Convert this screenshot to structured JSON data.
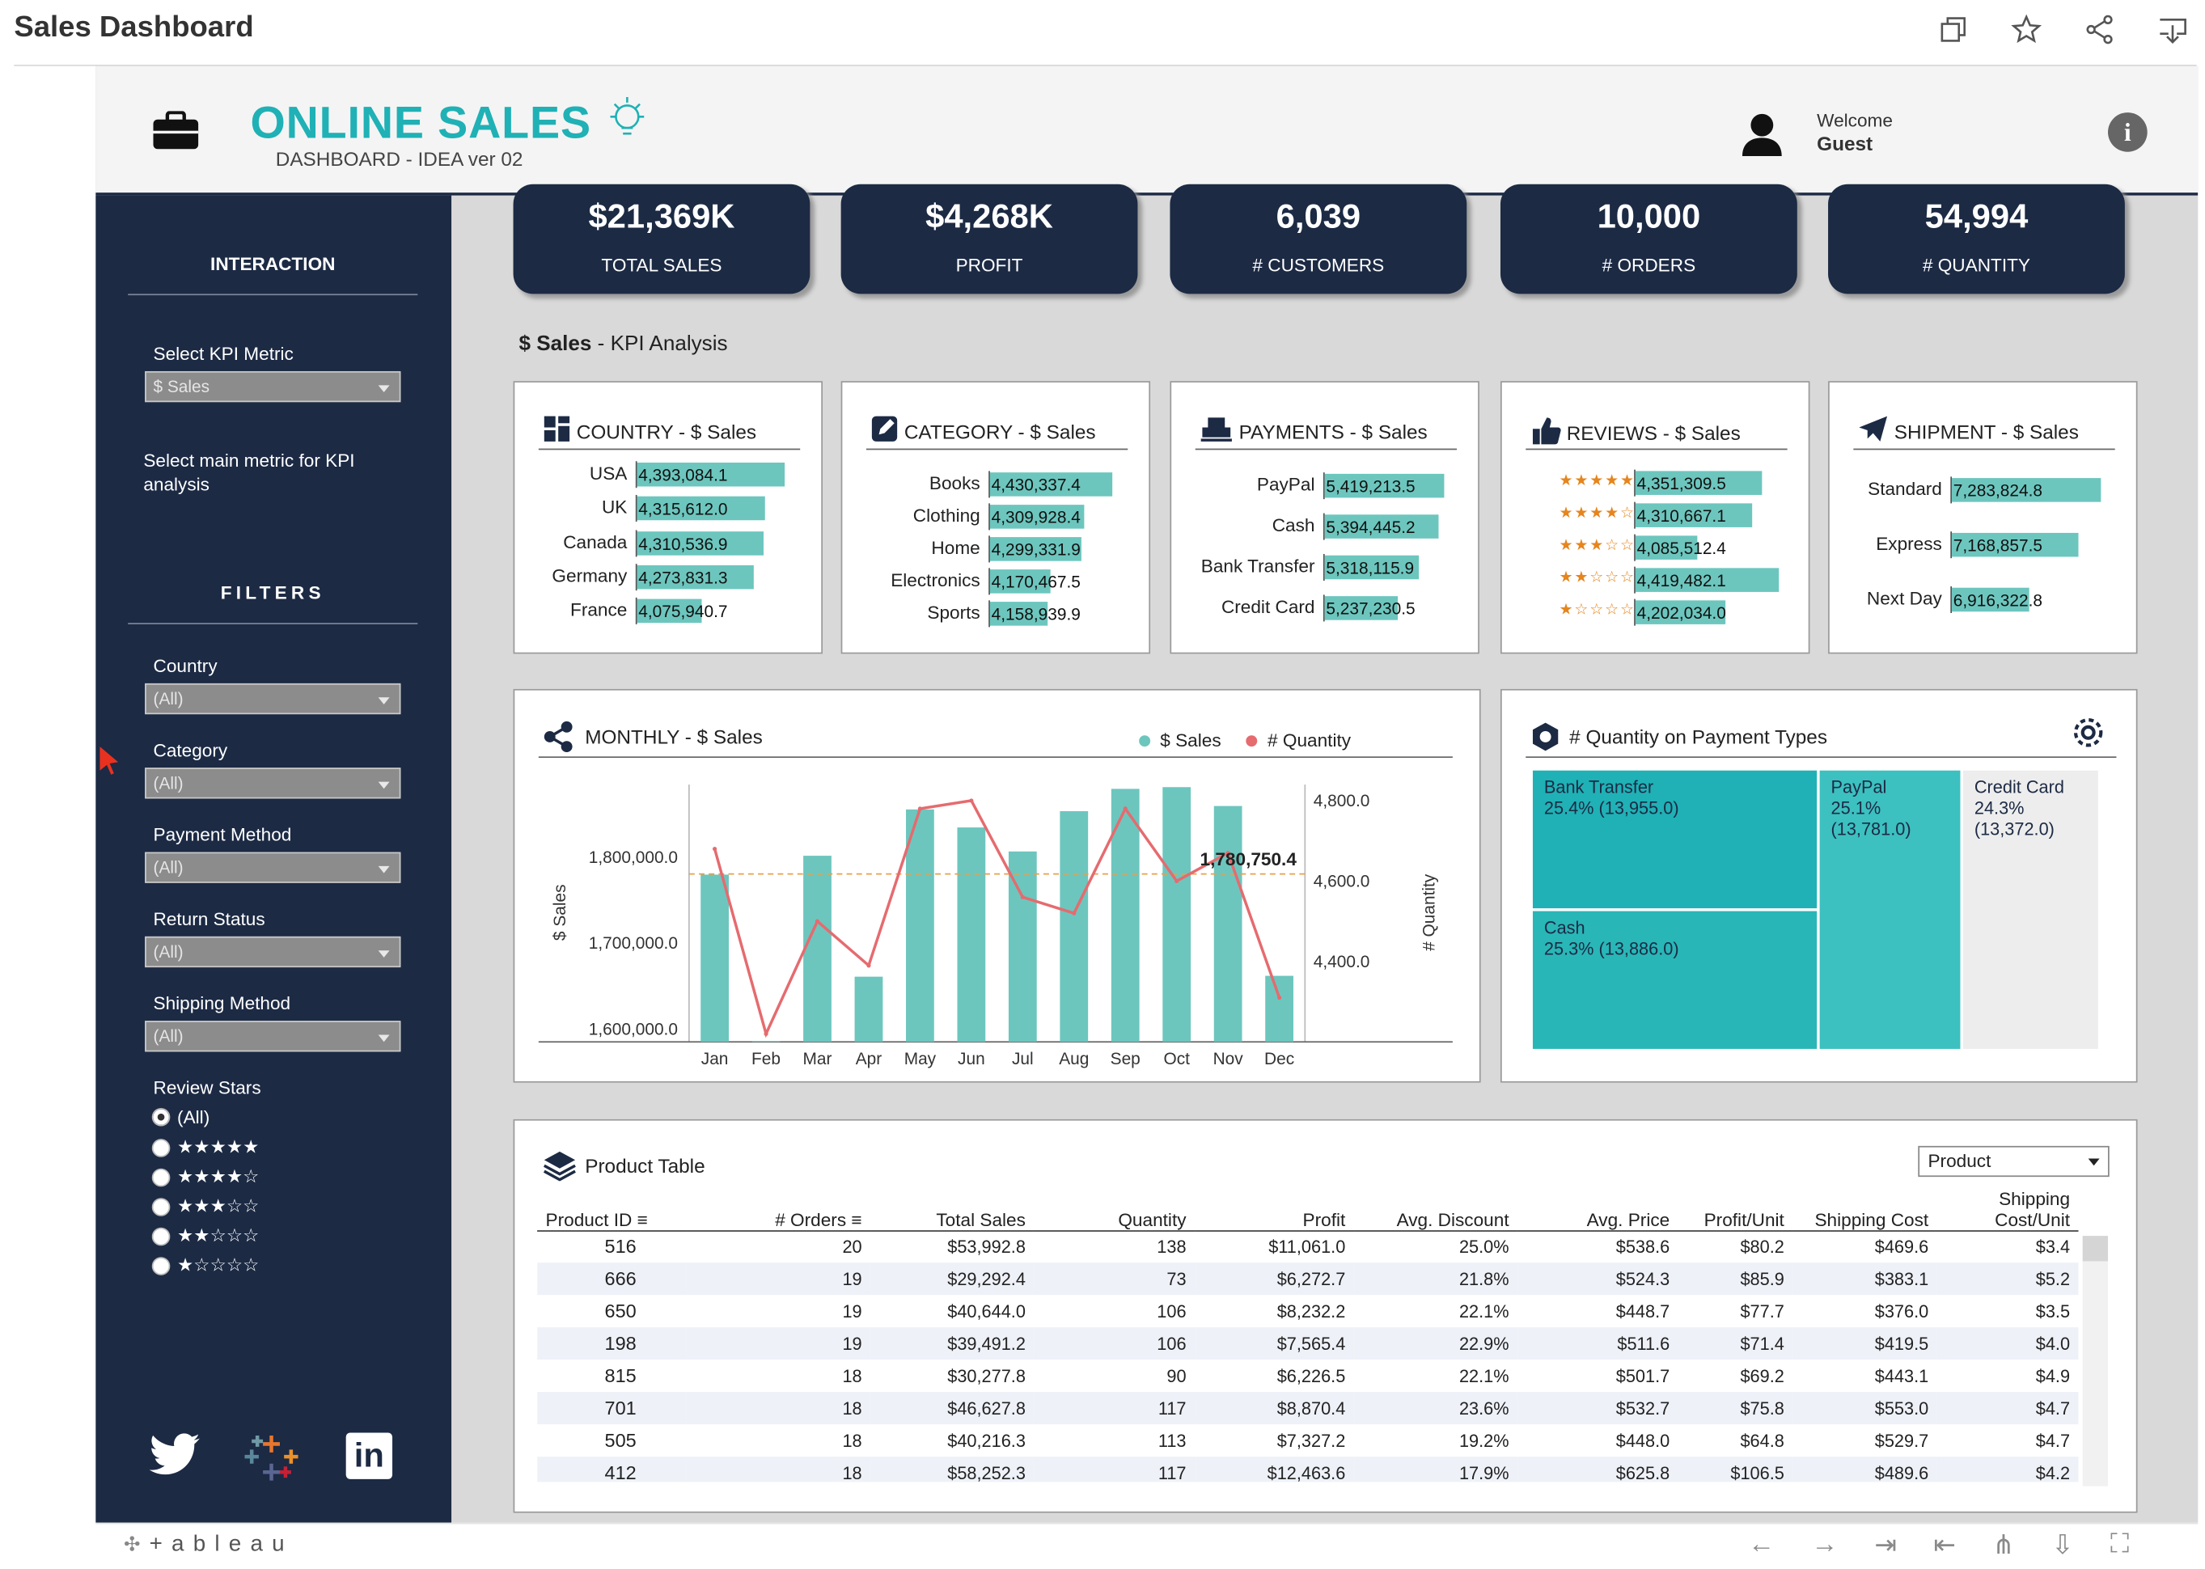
{
  "toolbar": {
    "title": "Sales Dashboard",
    "icons": [
      "duplicate-icon",
      "star-icon",
      "share-icon",
      "download-icon"
    ]
  },
  "header": {
    "brand": "ONLINE SALES",
    "subtitle": "DASHBOARD - IDEA ver 02",
    "welcome": "Welcome",
    "user": "Guest"
  },
  "kpis": [
    {
      "value": "$21,369K",
      "label": "TOTAL SALES"
    },
    {
      "value": "$4,268K",
      "label": "PROFIT"
    },
    {
      "value": "6,039",
      "label": "# CUSTOMERS"
    },
    {
      "value": "10,000",
      "label": "# ORDERS"
    },
    {
      "value": "54,994",
      "label": "# QUANTITY"
    }
  ],
  "sidebar": {
    "interaction": "INTERACTION",
    "kpi_label": "Select KPI Metric",
    "kpi_value": "$ Sales",
    "kpi_note": "Select main metric for KPI analysis",
    "filters": "FILTERS",
    "country_label": "Country",
    "country_value": "(All)",
    "category_label": "Category",
    "category_value": "(All)",
    "payment_label": "Payment Method",
    "payment_value": "(All)",
    "return_label": "Return Status",
    "return_value": "(All)",
    "shipping_label": "Shipping Method",
    "shipping_value": "(All)",
    "review_label": "Review Stars",
    "review_options": [
      "(All)",
      "★★★★★",
      "★★★★☆",
      "★★★☆☆",
      "★★☆☆☆",
      "★☆☆☆☆"
    ]
  },
  "section_title": {
    "metric": "$ Sales",
    "rest": " -  KPI Analysis"
  },
  "country": {
    "title": "COUNTRY - $ Sales",
    "rows": [
      [
        "USA",
        "4,393,084.1",
        4393084.1
      ],
      [
        "UK",
        "4,315,612.0",
        4315612.0
      ],
      [
        "Canada",
        "4,310,536.9",
        4310536.9
      ],
      [
        "Germany",
        "4,273,831.3",
        4273831.3
      ],
      [
        "France",
        "4,075,940.7",
        4075940.7
      ]
    ]
  },
  "category": {
    "title": "CATEGORY - $ Sales",
    "rows": [
      [
        "Books",
        "4,430,337.4",
        4430337.4
      ],
      [
        "Clothing",
        "4,309,928.4",
        4309928.4
      ],
      [
        "Home",
        "4,299,331.9",
        4299331.9
      ],
      [
        "Electronics",
        "4,170,467.5",
        4170467.5
      ],
      [
        "Sports",
        "4,158,939.9",
        4158939.9
      ]
    ]
  },
  "payments": {
    "title": "PAYMENTS - $ Sales",
    "rows": [
      [
        "PayPal",
        "5,419,213.5",
        5419213.5
      ],
      [
        "Cash",
        "5,394,445.2",
        5394445.2
      ],
      [
        "Bank Transfer",
        "5,318,115.9",
        5318115.9
      ],
      [
        "Credit Card",
        "5,237,230.5",
        5237230.5
      ]
    ]
  },
  "reviews": {
    "title": "REVIEWS - $ Sales",
    "rows": [
      [
        "★★★★★",
        "4,351,309.5",
        4351309.5
      ],
      [
        "★★★★☆",
        "4,310,667.1",
        4310667.1
      ],
      [
        "★★★☆☆",
        "4,085,512.4",
        4085512.4
      ],
      [
        "★★☆☆☆",
        "4,419,482.1",
        4419482.1
      ],
      [
        "★☆☆☆☆",
        "4,202,034.0",
        4202034.0
      ]
    ]
  },
  "shipment": {
    "title": "SHIPMENT - $ Sales",
    "rows": [
      [
        "Standard",
        "7,283,824.8",
        7283824.8
      ],
      [
        "Express",
        "7,168,857.5",
        7168857.5
      ],
      [
        "Next Day",
        "6,916,322.8",
        6916322.8
      ]
    ]
  },
  "monthly": {
    "title": "MONTHLY - $ Sales",
    "legend": [
      "$ Sales",
      "# Quantity"
    ],
    "ylabel": "$ Sales",
    "y2label": "# Quantity",
    "yticks": [
      "1,800,000.0",
      "1,700,000.0",
      "1,600,000.0"
    ],
    "y2ticks": [
      "4,800.0",
      "4,600.0",
      "4,400.0"
    ],
    "ref_label": "1,780,750.4"
  },
  "treemap": {
    "title": "# Quantity on Payment Types",
    "cells": [
      {
        "name": "Bank Transfer",
        "detail": "25.4% (13,955.0)",
        "value": 13955
      },
      {
        "name": "PayPal",
        "detail": "25.1%\n(13,781.0)",
        "value": 13781
      },
      {
        "name": "Credit Card",
        "detail": "24.3%\n(13,372.0)",
        "value": 13372
      },
      {
        "name": "Cash",
        "detail": "25.3% (13,886.0)",
        "value": 13886
      }
    ]
  },
  "product_table": {
    "title": "Product Table",
    "selector": "Product",
    "columns": [
      "Product ID",
      "# Orders",
      "Total Sales",
      "Quantity",
      "Profit",
      "Avg. Discount",
      "Avg. Price",
      "Profit/Unit",
      "Shipping Cost",
      "Shipping Cost/Unit"
    ],
    "rows": [
      [
        "516",
        "20",
        "$53,992.8",
        "138",
        "$11,061.0",
        "25.0%",
        "$538.6",
        "$80.2",
        "$469.6",
        "$3.4"
      ],
      [
        "666",
        "19",
        "$29,292.4",
        "73",
        "$6,272.7",
        "21.8%",
        "$524.3",
        "$85.9",
        "$383.1",
        "$5.2"
      ],
      [
        "650",
        "19",
        "$40,644.0",
        "106",
        "$8,232.2",
        "22.1%",
        "$448.7",
        "$77.7",
        "$376.0",
        "$3.5"
      ],
      [
        "198",
        "19",
        "$39,491.2",
        "106",
        "$7,565.4",
        "22.9%",
        "$511.6",
        "$71.4",
        "$419.5",
        "$4.0"
      ],
      [
        "815",
        "18",
        "$30,277.8",
        "90",
        "$6,226.5",
        "22.1%",
        "$501.7",
        "$69.2",
        "$443.1",
        "$4.9"
      ],
      [
        "701",
        "18",
        "$46,627.8",
        "117",
        "$8,870.4",
        "23.6%",
        "$532.7",
        "$75.8",
        "$553.0",
        "$4.7"
      ],
      [
        "505",
        "18",
        "$40,216.3",
        "113",
        "$7,327.2",
        "19.2%",
        "$448.0",
        "$64.8",
        "$529.7",
        "$4.7"
      ],
      [
        "412",
        "18",
        "$58,252.3",
        "117",
        "$12,463.6",
        "17.9%",
        "$625.8",
        "$106.5",
        "$489.6",
        "$4.2"
      ]
    ]
  },
  "footer": {
    "brand": "+ a b l e a u"
  },
  "colors": {
    "navy": "#1c2a44",
    "teal": "#1fb1b5",
    "bar": "#6cc6be",
    "line": "#e56b6f"
  },
  "chart_data": {
    "type": "bar",
    "title": "MONTHLY - $ Sales",
    "categories": [
      "Jan",
      "Feb",
      "Mar",
      "Apr",
      "May",
      "Jun",
      "Jul",
      "Aug",
      "Sep",
      "Oct",
      "Nov",
      "Dec"
    ],
    "series": [
      {
        "name": "$ Sales",
        "axis": "left",
        "values": [
          1780000,
          1586000,
          1802000,
          1661000,
          1856000,
          1835000,
          1807000,
          1854000,
          1880000,
          1882000,
          1860000,
          1662000
        ]
      },
      {
        "name": "# Quantity",
        "axis": "right",
        "type": "line",
        "values": [
          4680,
          4220,
          4500,
          4390,
          4780,
          4800,
          4560,
          4520,
          4780,
          4600,
          4670,
          4310
        ]
      }
    ],
    "ylabel": "$ Sales",
    "y2label": "# Quantity",
    "ylim": [
      1585000,
      1885000
    ],
    "y2lim": [
      4200,
      4840
    ],
    "reference_line": 1780750.4
  }
}
